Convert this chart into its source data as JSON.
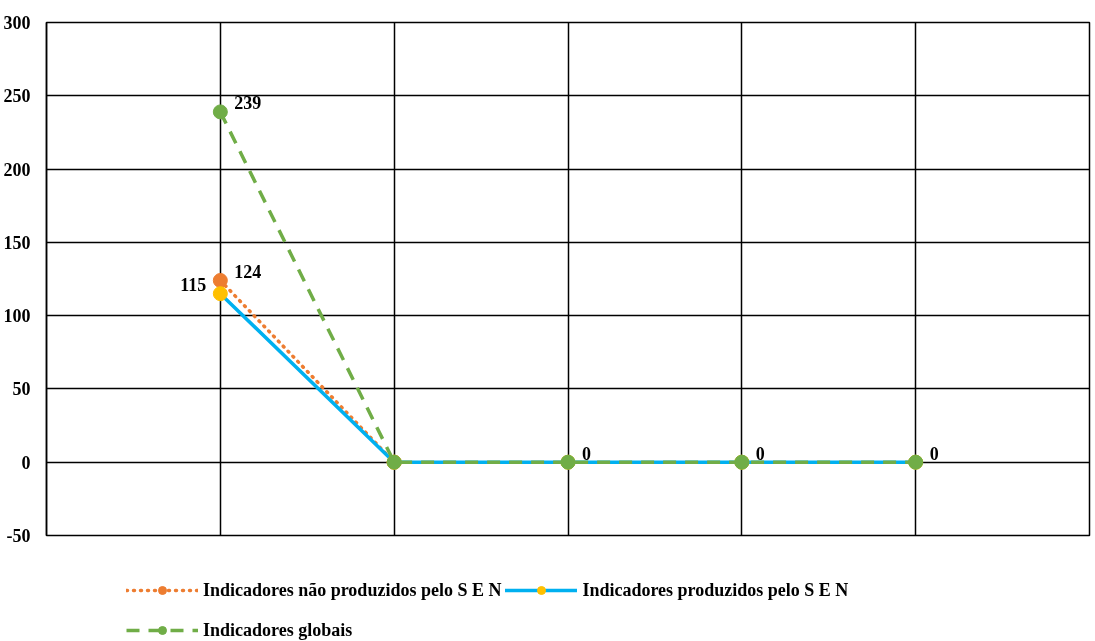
{
  "chart_data": {
    "type": "line",
    "categories": [
      null,
      null,
      null,
      null,
      null
    ],
    "ylim": [
      -50,
      300
    ],
    "yticks": [
      -50,
      0,
      50,
      100,
      150,
      200,
      250,
      300
    ],
    "grid": true,
    "legend": "bottom",
    "tick_labels": "y",
    "marker": "circle",
    "series": [
      {
        "name": "Indicadores não produzidos pelo S E N",
        "color": "#ed7d31",
        "line_style": "dotted",
        "values": [
          124,
          0,
          null,
          null,
          null
        ],
        "value_labels": [
          "124",
          null,
          null,
          null,
          null
        ]
      },
      {
        "name": "Indicadores produzidos pelo S E N",
        "color": "#00b0f0",
        "colors": [
          "#ffc000",
          "#ffc000",
          "#ffc000",
          "#ffc000",
          "#ffc000"
        ],
        "line_style": "solid",
        "values": [
          115,
          0,
          0,
          0,
          0
        ],
        "value_labels": [
          "115",
          null,
          null,
          null,
          null
        ]
      },
      {
        "name": "Indicadores globais",
        "color": "#70ad47",
        "line_style": "dashed",
        "values": [
          239,
          0,
          0,
          0,
          0
        ],
        "value_labels": [
          "239",
          null,
          "0",
          "0",
          "0"
        ]
      }
    ]
  }
}
